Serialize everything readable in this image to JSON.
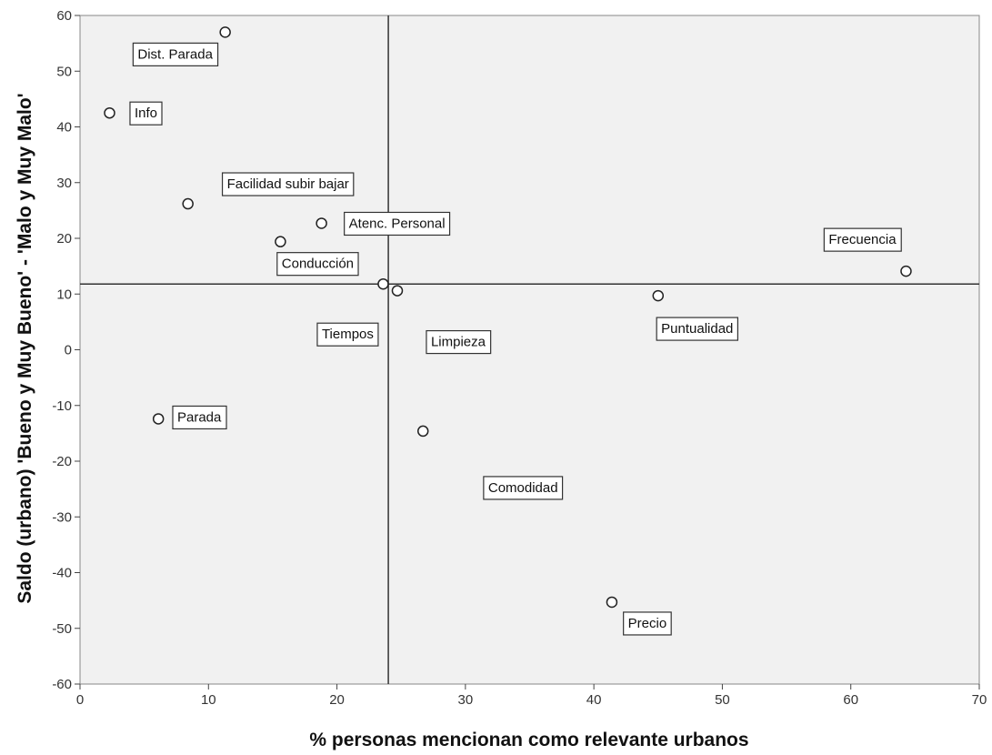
{
  "chart_data": {
    "type": "scatter",
    "xlabel": "% personas mencionan como relevante urbanos",
    "ylabel": "Saldo (urbano) 'Bueno y Muy Bueno' - 'Malo y Muy Malo'",
    "xlim": [
      0,
      70
    ],
    "ylim": [
      -60,
      60
    ],
    "xticks": [
      "0",
      "10",
      "20",
      "30",
      "40",
      "50",
      "60",
      "70"
    ],
    "yticks": [
      "60",
      "50",
      "40",
      "30",
      "20",
      "10",
      "0",
      "-10",
      "-20",
      "-30",
      "-40",
      "-50",
      "-60"
    ],
    "reference_lines": {
      "x": 24.0,
      "y": 11.8
    },
    "grid": false,
    "points": [
      {
        "label": "Dist. Parada",
        "x": 11.3,
        "y": 57.0
      },
      {
        "label": "Info",
        "x": 2.3,
        "y": 42.5
      },
      {
        "label": "Facilidad subir bajar",
        "x": 8.4,
        "y": 26.2
      },
      {
        "label": "Atenc. Personal",
        "x": 18.8,
        "y": 22.7
      },
      {
        "label": "Conducción",
        "x": 15.6,
        "y": 19.4
      },
      {
        "label": "Tiempos",
        "x": 23.6,
        "y": 11.8
      },
      {
        "label": "Limpieza",
        "x": 24.7,
        "y": 10.6
      },
      {
        "label": "Puntualidad",
        "x": 45.0,
        "y": 9.7
      },
      {
        "label": "Frecuencia",
        "x": 64.3,
        "y": 14.1
      },
      {
        "label": "Parada",
        "x": 6.1,
        "y": -12.4
      },
      {
        "label": "Comodidad",
        "x": 26.7,
        "y": -14.6
      },
      {
        "label": "Precio",
        "x": 41.4,
        "y": -45.3
      }
    ],
    "colors": {
      "plot_bg": "#f1f1f1",
      "marker": "#ffffff",
      "marker_stroke": "#222222",
      "ref_line": "#333333",
      "label_box": "#ffffff"
    }
  }
}
